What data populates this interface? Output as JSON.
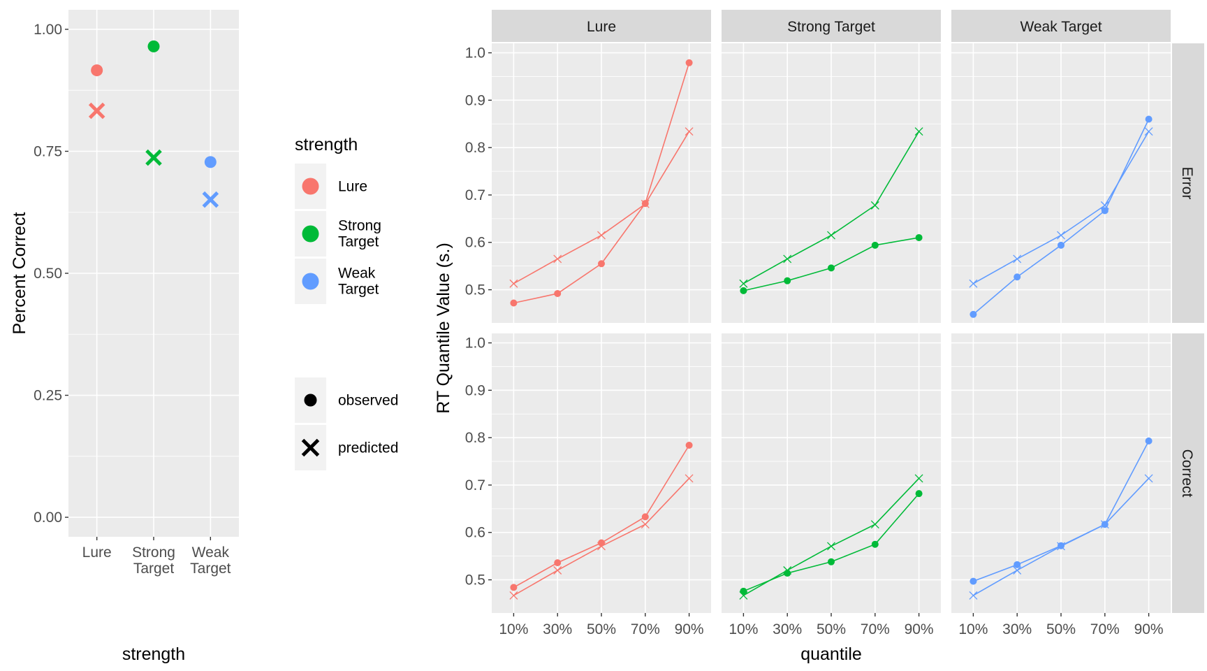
{
  "chart_data": [
    {
      "type": "scatter",
      "xlabel": "strength",
      "ylabel": "Percent Correct",
      "categories": [
        "Lure",
        "Strong\nTarget",
        "Weak\nTarget"
      ],
      "ylim": [
        -0.04,
        1.04
      ],
      "yticks": [
        0.0,
        0.25,
        0.5,
        0.75,
        1.0
      ],
      "ytick_labels": [
        "0.00",
        "0.25",
        "0.50",
        "0.75",
        "1.00"
      ],
      "grid": true,
      "series": [
        {
          "name": "observed",
          "shape": "circle",
          "values": [
            0.916,
            0.965,
            0.728
          ]
        },
        {
          "name": "predicted",
          "shape": "x",
          "values": [
            0.833,
            0.737,
            0.651
          ]
        }
      ],
      "colors": [
        "#F8766D",
        "#00BA38",
        "#619CFF"
      ],
      "legend": {
        "position": "right",
        "color_title": "strength",
        "color_entries": [
          "Lure",
          "Strong\nTarget",
          "Weak\nTarget"
        ],
        "shape_entries": [
          "observed",
          "predicted"
        ]
      }
    },
    {
      "type": "line",
      "xlabel": "quantile",
      "ylabel": "RT Quantile Value (s.)",
      "x": [
        "10%",
        "30%",
        "50%",
        "70%",
        "90%"
      ],
      "ylim": [
        0.43,
        1.02
      ],
      "yticks": [
        0.5,
        0.6,
        0.7,
        0.8,
        0.9,
        1.0
      ],
      "ytick_labels": [
        "0.5",
        "0.6",
        "0.7",
        "0.8",
        "0.9",
        "1.0"
      ],
      "grid": true,
      "facet_columns": [
        "Lure",
        "Strong Target",
        "Weak Target"
      ],
      "facet_rows": [
        "Error",
        "Correct"
      ],
      "colors": [
        "#F8766D",
        "#00BA38",
        "#619CFF"
      ],
      "panels": [
        [
          {
            "observed": [
              0.472,
              0.492,
              0.555,
              0.682,
              0.979
            ],
            "predicted": [
              0.513,
              0.565,
              0.615,
              0.681,
              0.834
            ]
          },
          {
            "observed": [
              0.498,
              0.519,
              0.546,
              0.594,
              0.61
            ],
            "predicted": [
              0.513,
              0.565,
              0.615,
              0.678,
              0.834
            ]
          },
          {
            "observed": [
              0.448,
              0.527,
              0.594,
              0.667,
              0.86
            ],
            "predicted": [
              0.513,
              0.565,
              0.615,
              0.678,
              0.834
            ]
          }
        ],
        [
          {
            "observed": [
              0.484,
              0.536,
              0.578,
              0.633,
              0.784
            ],
            "predicted": [
              0.467,
              0.52,
              0.571,
              0.617,
              0.714
            ]
          },
          {
            "observed": [
              0.476,
              0.514,
              0.538,
              0.575,
              0.682
            ],
            "predicted": [
              0.467,
              0.52,
              0.571,
              0.617,
              0.714
            ]
          },
          {
            "observed": [
              0.497,
              0.532,
              0.572,
              0.617,
              0.793
            ],
            "predicted": [
              0.467,
              0.52,
              0.571,
              0.617,
              0.714
            ]
          }
        ]
      ]
    }
  ]
}
